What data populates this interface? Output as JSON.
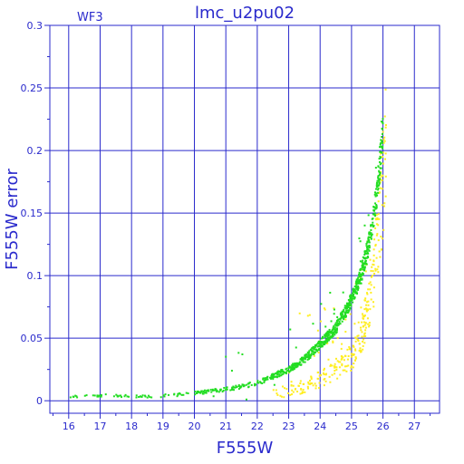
{
  "chart_data": {
    "type": "scatter",
    "title": "lmc_u2pu02",
    "corner_label": "WF3",
    "xlabel": "F555W",
    "ylabel": "F555W error",
    "xlim": [
      15.4,
      27.8
    ],
    "ylim": [
      -0.01,
      0.3
    ],
    "x_ticks": [
      "16",
      "17",
      "18",
      "19",
      "20",
      "21",
      "22",
      "23",
      "24",
      "25",
      "26",
      "27"
    ],
    "x_tick_values": [
      16,
      17,
      18,
      19,
      20,
      21,
      22,
      23,
      24,
      25,
      26,
      27
    ],
    "y_ticks": [
      "0",
      "0.05",
      "0.1",
      "0.15",
      "0.2",
      "0.25",
      "0.3"
    ],
    "y_tick_values": [
      0,
      0.05,
      0.1,
      0.15,
      0.2,
      0.25,
      0.3
    ],
    "grid": true,
    "colors": {
      "axis": "#2a2acc",
      "grid": "#2a2acc",
      "green_series": "#22dd22",
      "yellow_series": "#ffee22"
    },
    "series": [
      {
        "color": "green",
        "trend_points": [
          [
            16.0,
            0.003
          ],
          [
            17.0,
            0.004
          ],
          [
            18.0,
            0.0035
          ],
          [
            19.0,
            0.004
          ],
          [
            20.0,
            0.006
          ],
          [
            21.0,
            0.009
          ],
          [
            22.0,
            0.014
          ],
          [
            23.0,
            0.025
          ],
          [
            23.5,
            0.033
          ],
          [
            24.0,
            0.045
          ],
          [
            24.5,
            0.058
          ],
          [
            25.0,
            0.08
          ],
          [
            25.3,
            0.1
          ],
          [
            25.6,
            0.13
          ],
          [
            25.8,
            0.165
          ],
          [
            25.95,
            0.2
          ],
          [
            26.0,
            0.215
          ]
        ]
      },
      {
        "color": "yellow",
        "trend_points": [
          [
            22.5,
            0.005
          ],
          [
            23.0,
            0.008
          ],
          [
            23.5,
            0.012
          ],
          [
            24.0,
            0.017
          ],
          [
            24.5,
            0.024
          ],
          [
            25.0,
            0.035
          ],
          [
            25.3,
            0.05
          ],
          [
            25.6,
            0.08
          ],
          [
            25.8,
            0.12
          ],
          [
            26.0,
            0.17
          ],
          [
            26.1,
            0.21
          ]
        ]
      }
    ]
  }
}
